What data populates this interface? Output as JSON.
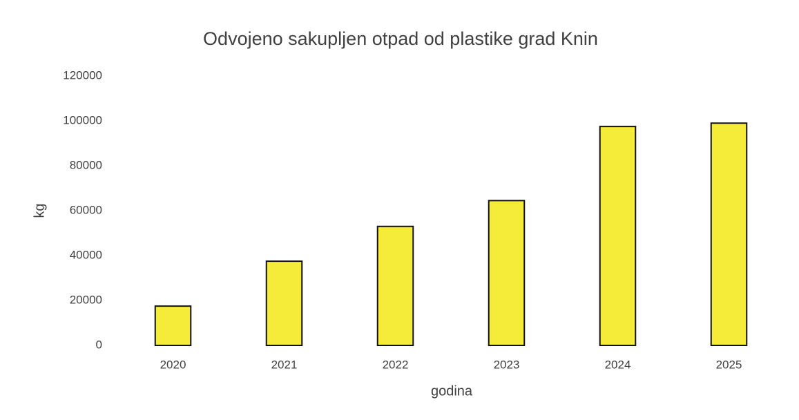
{
  "chart_data": {
    "type": "bar",
    "title": "Odvojeno sakupljen otpad od plastike grad Knin",
    "x_label": "godina",
    "y_label": "kg",
    "categories": [
      "2020",
      "2021",
      "2022",
      "2023",
      "2024",
      "2025"
    ],
    "values": [
      17500,
      37500,
      53000,
      64500,
      97500,
      99000
    ],
    "color": "#f5ec3a",
    "ylim": [
      0,
      120000
    ],
    "yticks": [
      0,
      20000,
      40000,
      60000,
      80000,
      100000,
      120000
    ],
    "grid": false
  }
}
